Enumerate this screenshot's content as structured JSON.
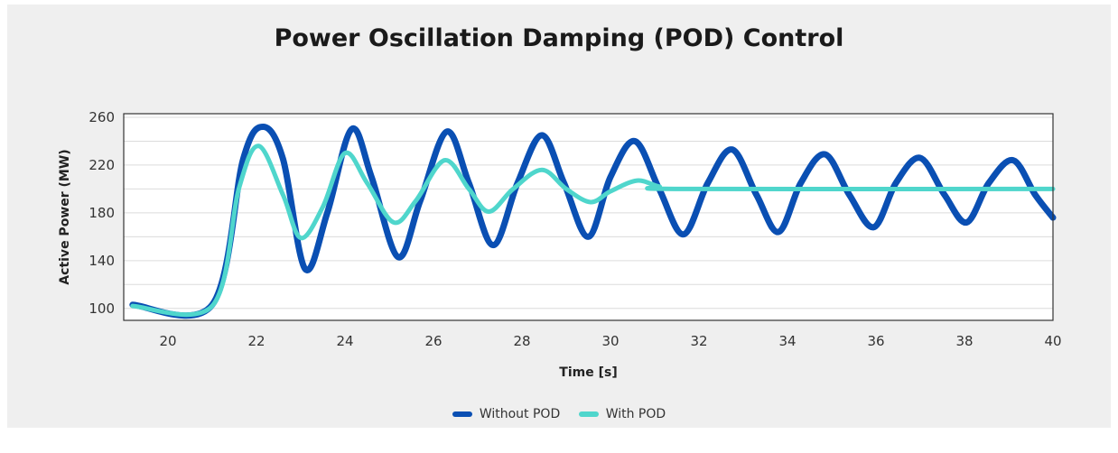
{
  "chart_data": {
    "type": "line",
    "title": "Power Oscillation Damping (POD) Control",
    "xlabel": "Time [s]",
    "ylabel": "Active Power (MW)",
    "xlim": [
      19,
      40
    ],
    "ylim": [
      90,
      263
    ],
    "xticks": [
      20,
      22,
      24,
      26,
      28,
      30,
      32,
      34,
      36,
      38,
      40
    ],
    "yticks": [
      100,
      140,
      180,
      220,
      260
    ],
    "grid": true,
    "legend_position": "bottom-center",
    "series": [
      {
        "name": "Without POD",
        "color": "#0a4fb3",
        "points": [
          [
            19.2,
            103
          ],
          [
            21.0,
            103
          ],
          [
            21.7,
            225
          ],
          [
            22.15,
            252
          ],
          [
            22.6,
            225
          ],
          [
            23.1,
            133
          ],
          [
            23.6,
            180
          ],
          [
            24.15,
            250
          ],
          [
            24.6,
            210
          ],
          [
            25.2,
            143
          ],
          [
            25.7,
            190
          ],
          [
            26.3,
            248
          ],
          [
            26.8,
            205
          ],
          [
            27.35,
            153
          ],
          [
            27.9,
            205
          ],
          [
            28.45,
            245
          ],
          [
            28.95,
            205
          ],
          [
            29.5,
            160
          ],
          [
            30.0,
            210
          ],
          [
            30.55,
            240
          ],
          [
            31.1,
            200
          ],
          [
            31.65,
            162
          ],
          [
            32.2,
            205
          ],
          [
            32.75,
            233
          ],
          [
            33.3,
            195
          ],
          [
            33.8,
            164
          ],
          [
            34.3,
            205
          ],
          [
            34.85,
            229
          ],
          [
            35.4,
            195
          ],
          [
            35.95,
            168
          ],
          [
            36.45,
            205
          ],
          [
            37.0,
            226
          ],
          [
            37.55,
            195
          ],
          [
            38.05,
            172
          ],
          [
            38.55,
            205
          ],
          [
            39.1,
            224
          ],
          [
            39.6,
            195
          ],
          [
            40.0,
            176
          ]
        ]
      },
      {
        "name": "With POD",
        "color": "#4fd6cc",
        "points": [
          [
            19.2,
            102
          ],
          [
            21.0,
            102
          ],
          [
            21.6,
            200
          ],
          [
            22.05,
            236
          ],
          [
            22.6,
            195
          ],
          [
            23.0,
            159
          ],
          [
            23.5,
            185
          ],
          [
            24.0,
            230
          ],
          [
            24.5,
            205
          ],
          [
            25.1,
            172
          ],
          [
            25.6,
            190
          ],
          [
            26.25,
            224
          ],
          [
            26.8,
            200
          ],
          [
            27.25,
            181
          ],
          [
            27.8,
            200
          ],
          [
            28.45,
            216
          ],
          [
            29.0,
            200
          ],
          [
            29.55,
            189
          ],
          [
            30.0,
            198
          ],
          [
            30.6,
            207
          ],
          [
            31.1,
            202
          ],
          [
            31.6,
            200
          ],
          [
            40.0,
            200
          ]
        ]
      }
    ]
  }
}
